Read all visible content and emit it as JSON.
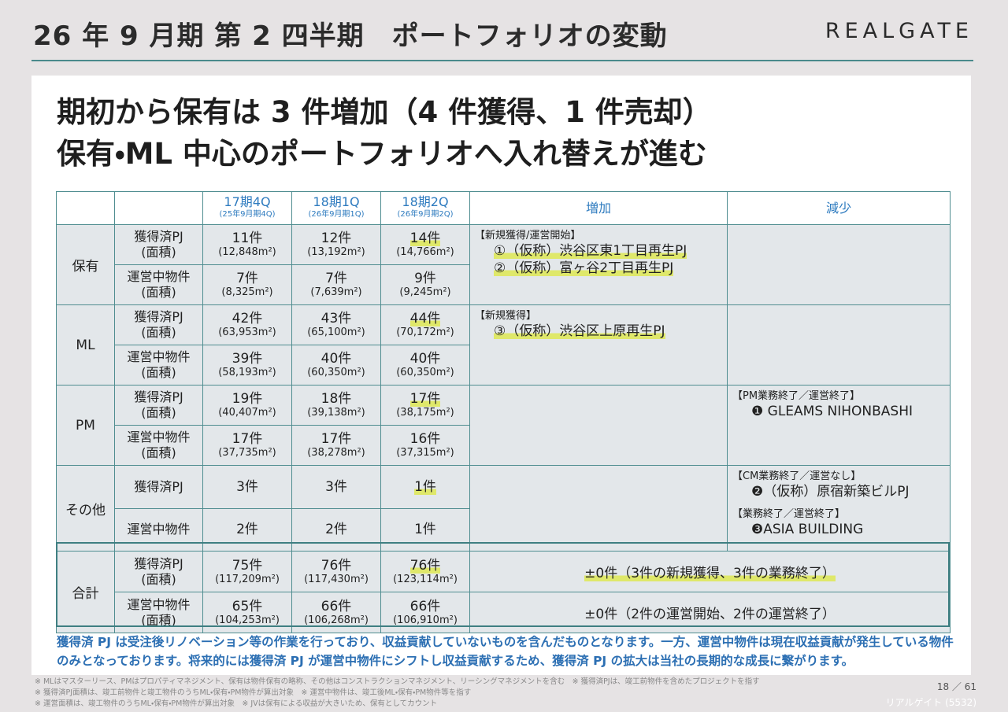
{
  "header": {
    "title": "26 年 9 月期 第 2 四半期　ポートフォリオの変動",
    "logo": "REALGATE"
  },
  "headline": [
    "期初から保有は 3 件増加（4 件獲得、1 件売却）",
    "保有・ML 中心のポートフォリオへ入れ替えが進む"
  ],
  "table": {
    "periods": [
      {
        "label": "17期4Q",
        "sub": "(25年9月期4Q)"
      },
      {
        "label": "18期1Q",
        "sub": "(26年9月期1Q)"
      },
      {
        "label": "18期2Q",
        "sub": "(26年9月期2Q)"
      }
    ],
    "increase_header": "増加",
    "decrease_header": "減少",
    "groups": [
      {
        "label": "保有",
        "rows": [
          {
            "label": [
              "獲得済PJ",
              "(面積)"
            ],
            "cells": [
              [
                "11件",
                "(12,848m²)"
              ],
              [
                "12件",
                "(13,192m²)"
              ],
              [
                "14件",
                "(14,766m²)"
              ]
            ]
          },
          {
            "label": [
              "運営中物件",
              "(面積)"
            ],
            "cells": [
              [
                "7件",
                "(8,325m²)"
              ],
              [
                "7件",
                "(7,639m²)"
              ],
              [
                "9件",
                "(9,245m²)"
              ]
            ]
          }
        ],
        "increase": [
          {
            "heading": "【新規獲得/運営開始】",
            "items": [
              "①（仮称）渋谷区東1丁目再生PJ",
              "②（仮称）富ヶ谷2丁目再生PJ"
            ]
          }
        ]
      },
      {
        "label": "ML",
        "rows": [
          {
            "label": [
              "獲得済PJ",
              "(面積)"
            ],
            "cells": [
              [
                "42件",
                "(63,953m²)"
              ],
              [
                "43件",
                "(65,100m²)"
              ],
              [
                "44件",
                "(70,172m²)"
              ]
            ]
          },
          {
            "label": [
              "運営中物件",
              "(面積)"
            ],
            "cells": [
              [
                "39件",
                "(58,193m²)"
              ],
              [
                "40件",
                "(60,350m²)"
              ],
              [
                "40件",
                "(60,350m²)"
              ]
            ]
          }
        ],
        "increase": [
          {
            "heading": "【新規獲得】",
            "items": [
              "③（仮称）渋谷区上原再生PJ"
            ]
          }
        ]
      },
      {
        "label": "PM",
        "rows": [
          {
            "label": [
              "獲得済PJ",
              "(面積)"
            ],
            "cells": [
              [
                "19件",
                "(40,407m²)"
              ],
              [
                "18件",
                "(39,138m²)"
              ],
              [
                "17件",
                "(38,175m²)"
              ]
            ]
          },
          {
            "label": [
              "運営中物件",
              "(面積)"
            ],
            "cells": [
              [
                "17件",
                "(37,735m²)"
              ],
              [
                "17件",
                "(38,278m²)"
              ],
              [
                "16件",
                "(37,315m²)"
              ]
            ]
          }
        ],
        "decrease": [
          {
            "heading": "【PM業務終了／運営終了】",
            "items": [
              "❶ GLEAMS NIHONBASHI"
            ]
          }
        ]
      },
      {
        "label": "その他",
        "rows": [
          {
            "label": [
              "獲得済PJ"
            ],
            "cells": [
              [
                "3件"
              ],
              [
                "3件"
              ],
              [
                "1件"
              ]
            ]
          },
          {
            "label": [
              "運営中物件"
            ],
            "cells": [
              [
                "2件"
              ],
              [
                "2件"
              ],
              [
                "1件"
              ]
            ]
          }
        ],
        "decrease": [
          {
            "heading": "【CM業務終了／運営なし】",
            "items": [
              "❷（仮称）原宿新築ビルPJ"
            ]
          },
          {
            "heading": "【業務終了／運営終了】",
            "items": [
              "❸ASIA BUILDING"
            ]
          }
        ]
      },
      {
        "label": "合計",
        "rows": [
          {
            "label": [
              "獲得済PJ",
              "(面積)"
            ],
            "cells": [
              [
                "75件",
                "(117,209m²)"
              ],
              [
                "76件",
                "(117,430m²)"
              ],
              [
                "76件",
                "(123,114m²)"
              ]
            ],
            "change": "±0件（3件の新規獲得、3件の業務終了）"
          },
          {
            "label": [
              "運営中物件",
              "(面積)"
            ],
            "cells": [
              [
                "65件",
                "(104,253m²)"
              ],
              [
                "66件",
                "(106,268m²)"
              ],
              [
                "66件",
                "(106,910m²)"
              ]
            ],
            "change": "±0件（2件の運営開始、2件の運営終了）"
          }
        ]
      }
    ]
  },
  "note": "獲得済 PJ は受注後リノベーション等の作業を行っており、収益貢献していないものを含んだものとなります。一方、運営中物件は現在収益貢献が発生している物件のみとなっております。将来的には獲得済 PJ が運営中物件にシフトし収益貢献するため、獲得済 PJ の拡大は当社の長期的な成長に繋がります。",
  "footnotes": [
    "※ MLはマスターリース、PMはプロパティマネジメント、保有は物件保有の略称、その他はコンストラクションマネジメント、リーシングマネジメントを含む　※ 獲得済PJは、竣工前物件を含めたプロジェクトを指す",
    "※ 獲得済PJ面積は、竣工前物件と竣工物件のうちML・保有・PM物件が算出対象　※ 運営中物件は、竣工後ML・保有・PM物件等を指す",
    "※ 運営面積は、竣工物件のうちML・保有・PM物件が算出対象　※ JVは保有による収益が大きいため、保有としてカウント"
  ],
  "page": "18 ／ 61",
  "company": "リアルゲイト (5532)"
}
